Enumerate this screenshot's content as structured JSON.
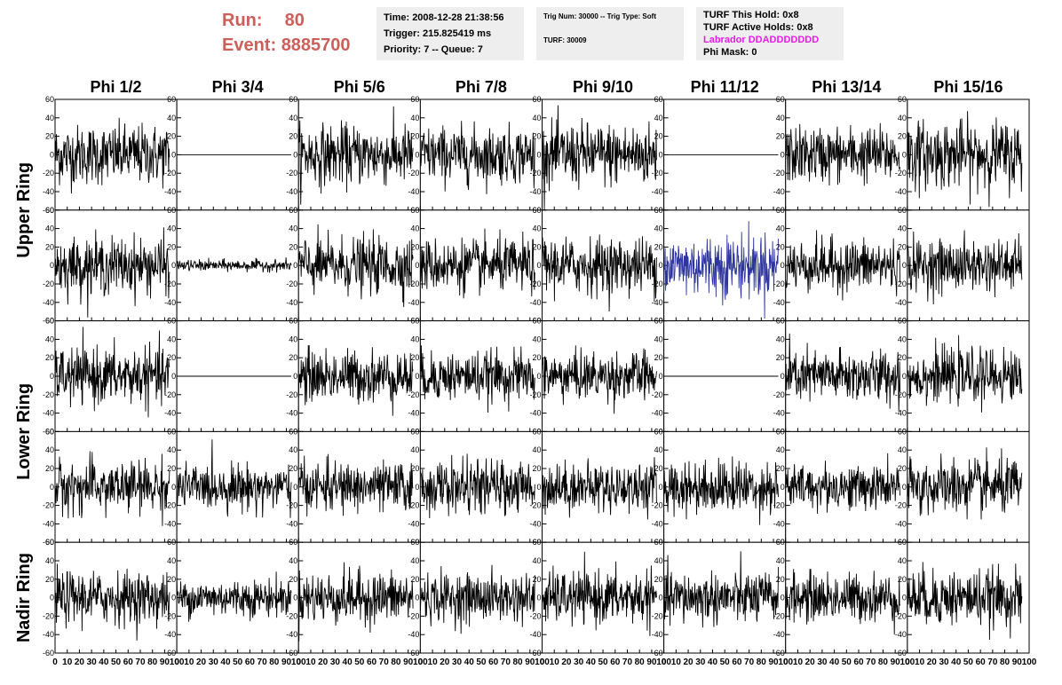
{
  "header": {
    "run_label": "Run:",
    "run_value": "80",
    "event_label": "Event:",
    "event_value": "8885700"
  },
  "info_panel": {
    "time": "Time: 2008-12-28 21:38:56",
    "trigger": "Trigger: 215.825419 ms",
    "priority_queue": "Priority: 7 -- Queue: 7"
  },
  "trig_panel": {
    "trig": "Trig Num: 30000 -- Trig Type: Soft",
    "turf": "TURF: 30009"
  },
  "turf_panel": {
    "this_hold": "TURF This Hold: 0x8",
    "active_holds": "TURF Active Holds: 0x8",
    "labrador": "Labrador DDADDDDDDD",
    "phi_mask": "Phi Mask: 0"
  },
  "colors": {
    "header_red": "#cc5f5a",
    "panel_bg": "#eeeeee",
    "trace": "#000000",
    "highlight_trace": "#2e35a0",
    "labrador": "#e81ae8"
  },
  "chart_data": {
    "type": "line",
    "title": "",
    "column_labels": [
      "Phi 1/2",
      "Phi 3/4",
      "Phi 5/6",
      "Phi 7/8",
      "Phi 9/10",
      "Phi 11/12",
      "Phi 13/14",
      "Phi 15/16"
    ],
    "ring_labels": [
      "Upper Ring",
      "Lower Ring",
      "Nadir Ring"
    ],
    "rows": 5,
    "ring_rows": [
      [
        0,
        1
      ],
      [
        2,
        3
      ],
      [
        4
      ]
    ],
    "xlim": [
      0,
      100
    ],
    "ylim": [
      -60,
      60
    ],
    "x_ticks": [
      "0",
      "10",
      "20",
      "30",
      "40",
      "50",
      "60",
      "70",
      "80",
      "90",
      "100"
    ],
    "y_ticks": [
      "60",
      "40",
      "20",
      "0",
      "-20",
      "-40",
      "-60"
    ],
    "samples_per_trace": 260,
    "x_range_of_trace": [
      0,
      94
    ],
    "trace_style": "noise",
    "note_flat_channels": "flat (zero) traces in Phi 3/4 and Phi 11/12 of rows 1 and 3",
    "panels": [
      [
        {
          "amp": 16
        },
        {
          "amp": 0
        },
        {
          "amp": 16
        },
        {
          "amp": 15
        },
        {
          "amp": 17
        },
        {
          "amp": 0
        },
        {
          "amp": 15
        },
        {
          "amp": 18
        }
      ],
      [
        {
          "amp": 15
        },
        {
          "amp": 3
        },
        {
          "amp": 15
        },
        {
          "amp": 14
        },
        {
          "amp": 15
        },
        {
          "amp": 17,
          "highlight": true
        },
        {
          "amp": 14
        },
        {
          "amp": 14
        }
      ],
      [
        {
          "amp": 15
        },
        {
          "amp": 0
        },
        {
          "amp": 14
        },
        {
          "amp": 13
        },
        {
          "amp": 13
        },
        {
          "amp": 0
        },
        {
          "amp": 14
        },
        {
          "amp": 14
        }
      ],
      [
        {
          "amp": 14
        },
        {
          "amp": 12
        },
        {
          "amp": 13
        },
        {
          "amp": 14
        },
        {
          "amp": 13
        },
        {
          "amp": 14
        },
        {
          "amp": 12
        },
        {
          "amp": 15
        }
      ],
      [
        {
          "amp": 14
        },
        {
          "amp": 10
        },
        {
          "amp": 14
        },
        {
          "amp": 13
        },
        {
          "amp": 14
        },
        {
          "amp": 14
        },
        {
          "amp": 13
        },
        {
          "amp": 15
        }
      ]
    ]
  }
}
